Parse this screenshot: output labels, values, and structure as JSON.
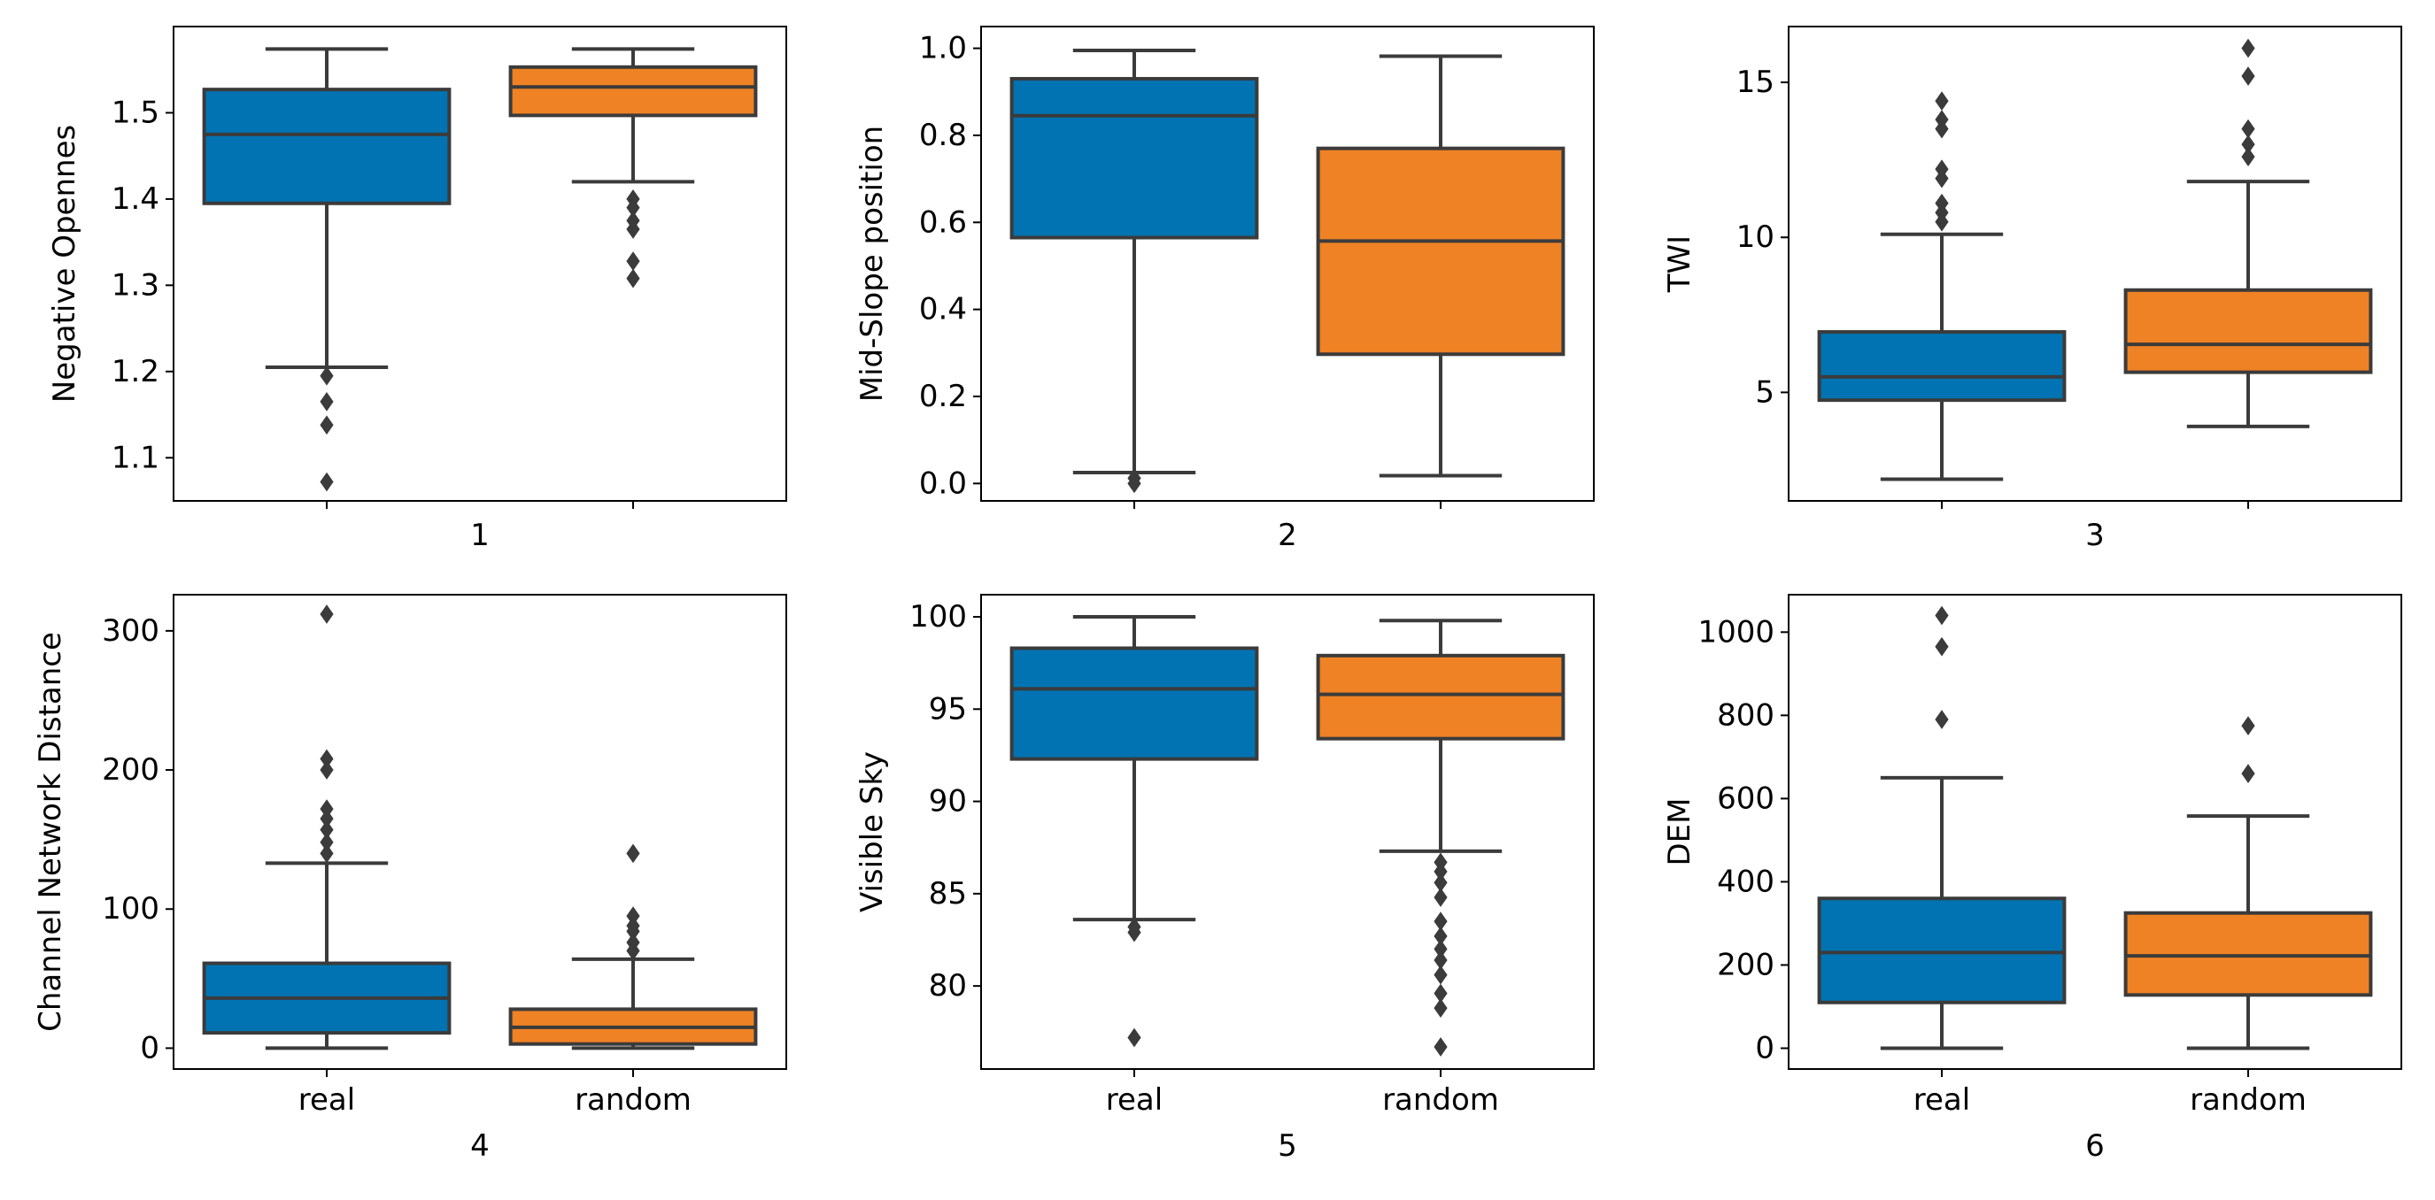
{
  "colors": {
    "real": "#0173b2",
    "random": "#ef8224",
    "line": "#3b3b3b"
  },
  "chart_data": [
    {
      "type": "box",
      "xlabel": "1",
      "ylabel": "Negative Opennes",
      "show_category_labels": false,
      "categories": [
        "real",
        "random"
      ],
      "ylim": [
        1.05,
        1.6
      ],
      "yticks": [
        1.1,
        1.2,
        1.3,
        1.4,
        1.5
      ],
      "tick_format": 1,
      "boxes": [
        {
          "name": "real",
          "whislo": 1.205,
          "q1": 1.395,
          "med": 1.475,
          "q3": 1.527,
          "whishi": 1.574,
          "fliers": [
            1.195,
            1.165,
            1.138,
            1.072
          ]
        },
        {
          "name": "random",
          "whislo": 1.42,
          "q1": 1.497,
          "med": 1.53,
          "q3": 1.553,
          "whishi": 1.574,
          "fliers": [
            1.4,
            1.39,
            1.375,
            1.365,
            1.328,
            1.308
          ]
        }
      ]
    },
    {
      "type": "box",
      "xlabel": "2",
      "ylabel": "Mid-Slope position",
      "show_category_labels": false,
      "categories": [
        "real",
        "random"
      ],
      "ylim": [
        -0.04,
        1.05
      ],
      "yticks": [
        0.0,
        0.2,
        0.4,
        0.6,
        0.8,
        1.0
      ],
      "tick_format": 1,
      "boxes": [
        {
          "name": "real",
          "whislo": 0.025,
          "q1": 0.565,
          "med": 0.845,
          "q3": 0.93,
          "whishi": 0.995,
          "fliers": [
            0.012,
            0.0
          ]
        },
        {
          "name": "random",
          "whislo": 0.018,
          "q1": 0.297,
          "med": 0.557,
          "q3": 0.77,
          "whishi": 0.982,
          "fliers": []
        }
      ]
    },
    {
      "type": "box",
      "xlabel": "3",
      "ylabel": "TWI",
      "show_category_labels": false,
      "categories": [
        "real",
        "random"
      ],
      "ylim": [
        1.5,
        16.8
      ],
      "yticks": [
        5,
        10,
        15
      ],
      "tick_format": 0,
      "boxes": [
        {
          "name": "real",
          "whislo": 2.2,
          "q1": 4.75,
          "med": 5.5,
          "q3": 6.95,
          "whishi": 10.1,
          "fliers": [
            14.4,
            13.8,
            13.5,
            12.2,
            11.9,
            11.1,
            10.8,
            10.5
          ]
        },
        {
          "name": "random",
          "whislo": 3.9,
          "q1": 5.65,
          "med": 6.55,
          "q3": 8.3,
          "whishi": 11.8,
          "fliers": [
            16.1,
            15.2,
            13.5,
            13.0,
            12.6
          ]
        }
      ]
    },
    {
      "type": "box",
      "xlabel": "4",
      "ylabel": "Channel Network Distance",
      "show_category_labels": true,
      "categories": [
        "real",
        "random"
      ],
      "ylim": [
        -15,
        326
      ],
      "yticks": [
        0,
        100,
        200,
        300
      ],
      "tick_format": 0,
      "boxes": [
        {
          "name": "real",
          "whislo": 0,
          "q1": 11,
          "med": 36,
          "q3": 61,
          "whishi": 133,
          "fliers": [
            312,
            208,
            200,
            172,
            165,
            157,
            148,
            140
          ]
        },
        {
          "name": "random",
          "whislo": 0,
          "q1": 3,
          "med": 15,
          "q3": 28,
          "whishi": 64,
          "fliers": [
            140,
            95,
            88,
            84,
            76,
            70
          ]
        }
      ]
    },
    {
      "type": "box",
      "xlabel": "5",
      "ylabel": "Visible Sky",
      "show_category_labels": true,
      "categories": [
        "real",
        "random"
      ],
      "ylim": [
        75.5,
        101.2
      ],
      "yticks": [
        80,
        85,
        90,
        95,
        100
      ],
      "tick_format": 0,
      "boxes": [
        {
          "name": "real",
          "whislo": 83.6,
          "q1": 92.3,
          "med": 96.1,
          "q3": 98.3,
          "whishi": 100,
          "fliers": [
            83.2,
            82.9,
            77.2
          ]
        },
        {
          "name": "random",
          "whislo": 87.3,
          "q1": 93.4,
          "med": 95.8,
          "q3": 97.9,
          "whishi": 99.8,
          "fliers": [
            86.7,
            86.2,
            85.6,
            84.8,
            83.5,
            82.7,
            82.0,
            81.4,
            80.6,
            79.6,
            78.8,
            76.7
          ]
        }
      ]
    },
    {
      "type": "box",
      "xlabel": "6",
      "ylabel": "DEM",
      "show_category_labels": true,
      "categories": [
        "real",
        "random"
      ],
      "ylim": [
        -50,
        1090
      ],
      "yticks": [
        0,
        200,
        400,
        600,
        800,
        1000
      ],
      "tick_format": 0,
      "boxes": [
        {
          "name": "real",
          "whislo": 0,
          "q1": 110,
          "med": 230,
          "q3": 360,
          "whishi": 650,
          "fliers": [
            1040,
            965,
            790
          ]
        },
        {
          "name": "random",
          "whislo": 0,
          "q1": 128,
          "med": 222,
          "q3": 325,
          "whishi": 558,
          "fliers": [
            775,
            660
          ]
        }
      ]
    }
  ]
}
